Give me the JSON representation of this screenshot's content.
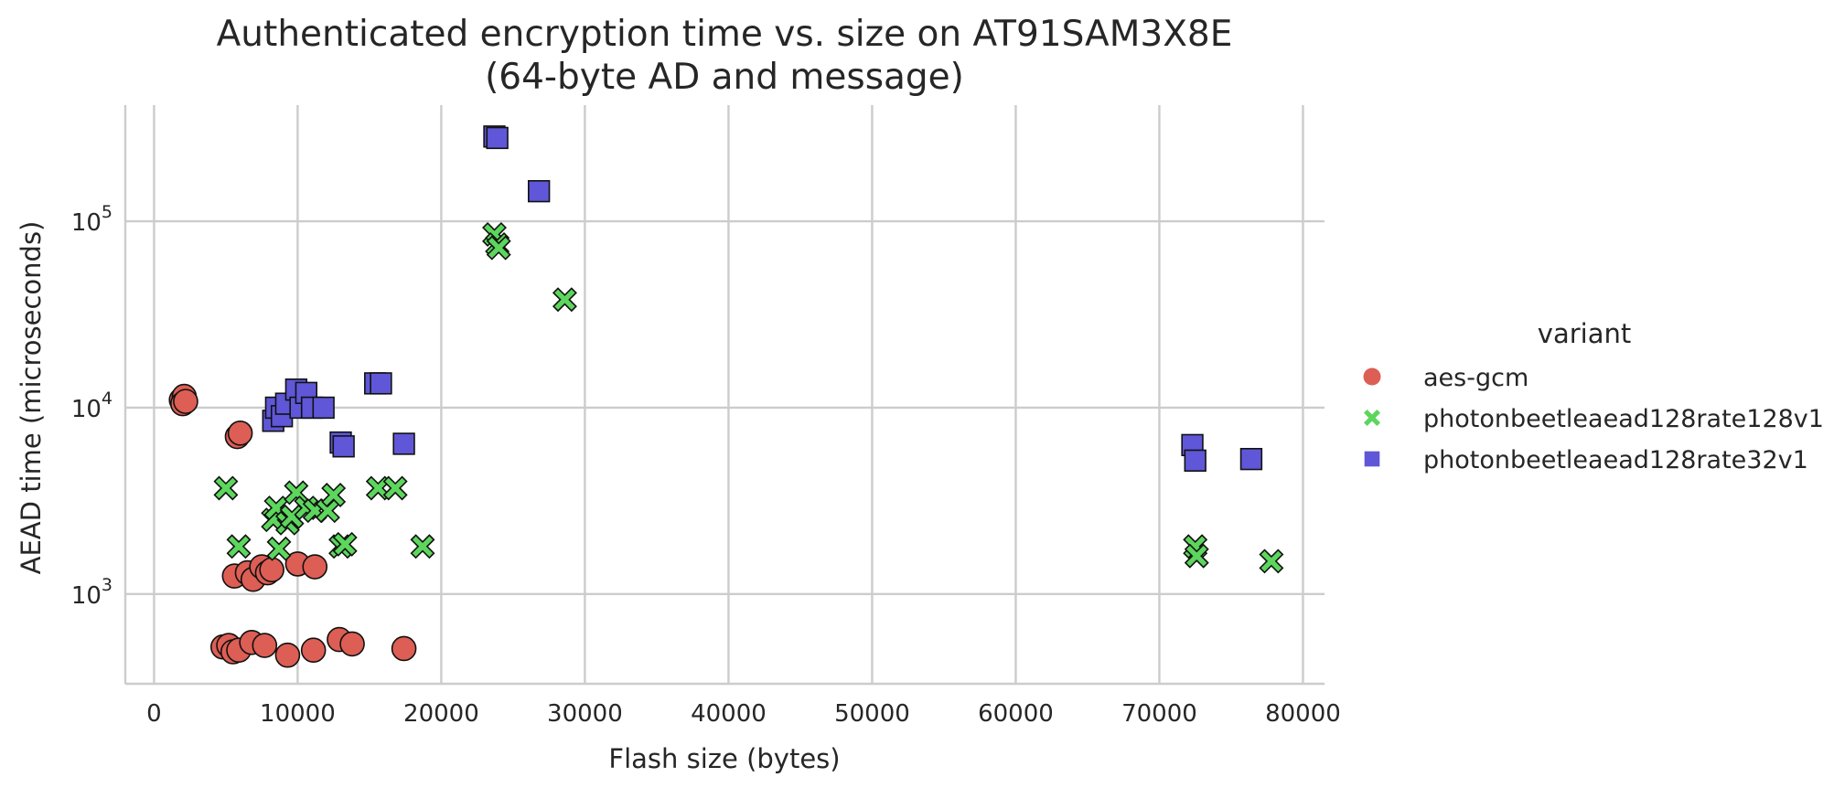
{
  "chart_data": {
    "type": "scatter",
    "title_line1": "Authenticated encryption time vs. size on AT91SAM3X8E",
    "title_line2": "(64-byte AD and message)",
    "xlabel": "Flash size (bytes)",
    "ylabel": "AEAD time (microseconds)",
    "xlim": [
      -2000,
      81500
    ],
    "ylim": [
      330,
      420000
    ],
    "yscale": "log",
    "grid": true,
    "x_ticks": [
      0,
      10000,
      20000,
      30000,
      40000,
      50000,
      60000,
      70000,
      80000
    ],
    "x_tick_labels": [
      "0",
      "10000",
      "20000",
      "30000",
      "40000",
      "50000",
      "60000",
      "70000",
      "80000"
    ],
    "y_ticks": [
      1000,
      10000,
      100000
    ],
    "y_tick_labels": [
      {
        "base": "10",
        "exp": "3"
      },
      {
        "base": "10",
        "exp": "4"
      },
      {
        "base": "10",
        "exp": "5"
      }
    ],
    "legend": {
      "title": "variant",
      "placement": "right"
    },
    "series": [
      {
        "name": "aes-gcm",
        "color": "#dd5e54",
        "marker": "circle",
        "points": [
          [
            1900,
            11000
          ],
          [
            2100,
            11500
          ],
          [
            2000,
            10500
          ],
          [
            2200,
            10800
          ],
          [
            5800,
            7000
          ],
          [
            6000,
            7300
          ],
          [
            5600,
            1250
          ],
          [
            6500,
            1300
          ],
          [
            6900,
            1200
          ],
          [
            7500,
            1400
          ],
          [
            7900,
            1300
          ],
          [
            8200,
            1350
          ],
          [
            10000,
            1450
          ],
          [
            11200,
            1400
          ],
          [
            4800,
            520
          ],
          [
            5200,
            530
          ],
          [
            5500,
            490
          ],
          [
            5900,
            500
          ],
          [
            6800,
            550
          ],
          [
            7700,
            530
          ],
          [
            9300,
            470
          ],
          [
            11100,
            500
          ],
          [
            12900,
            570
          ],
          [
            13800,
            540
          ],
          [
            17400,
            510
          ]
        ]
      },
      {
        "name": "photonbeetleaead128rate128v1",
        "color": "#5cd65c",
        "marker": "x",
        "points": [
          [
            5000,
            3700
          ],
          [
            5900,
            1800
          ],
          [
            8300,
            2500
          ],
          [
            8500,
            2900
          ],
          [
            8700,
            1750
          ],
          [
            9300,
            2400
          ],
          [
            9600,
            2600
          ],
          [
            9900,
            3500
          ],
          [
            10600,
            2900
          ],
          [
            11200,
            2800
          ],
          [
            12100,
            2800
          ],
          [
            12500,
            3400
          ],
          [
            13000,
            1800
          ],
          [
            13300,
            1850
          ],
          [
            15600,
            3700
          ],
          [
            16800,
            3700
          ],
          [
            18700,
            1800
          ],
          [
            23700,
            85000
          ],
          [
            23900,
            75000
          ],
          [
            24000,
            72000
          ],
          [
            28600,
            38000
          ],
          [
            72500,
            1800
          ],
          [
            72600,
            1600
          ],
          [
            77800,
            1500
          ]
        ]
      },
      {
        "name": "photonbeetleaead128rate32v1",
        "color": "#5f57d8",
        "marker": "square",
        "points": [
          [
            8300,
            8500
          ],
          [
            8500,
            10000
          ],
          [
            8900,
            9000
          ],
          [
            9200,
            10500
          ],
          [
            9900,
            12500
          ],
          [
            10200,
            10000
          ],
          [
            10600,
            12000
          ],
          [
            11000,
            10000
          ],
          [
            11800,
            10000
          ],
          [
            13000,
            6500
          ],
          [
            13200,
            6200
          ],
          [
            15400,
            13500
          ],
          [
            15800,
            13500
          ],
          [
            17400,
            6400
          ],
          [
            23700,
            285000
          ],
          [
            23900,
            280000
          ],
          [
            26800,
            145000
          ],
          [
            72300,
            6300
          ],
          [
            72500,
            5200
          ],
          [
            76400,
            5300
          ]
        ]
      }
    ]
  }
}
